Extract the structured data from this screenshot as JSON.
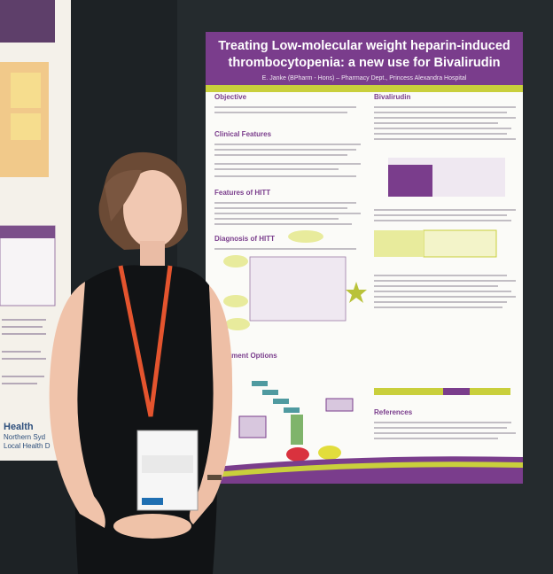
{
  "poster": {
    "title_lines": [
      "Treating Low-molecular weight heparin-induced",
      "thrombocytopenia: a new use for Bivalirudin"
    ],
    "author": "E. Janke (BPharm - Hons) – Pharmacy Dept., Princess Alexandra Hospital",
    "sections": [
      "Objective",
      "Clinical Features",
      "Features of HITT",
      "Diagnosis of HITT",
      "Treatment Options",
      "Bivalirudin",
      "References"
    ]
  },
  "side_poster": {
    "logo_lines": [
      "Health",
      "Northern Syd",
      "Local Health D"
    ]
  }
}
